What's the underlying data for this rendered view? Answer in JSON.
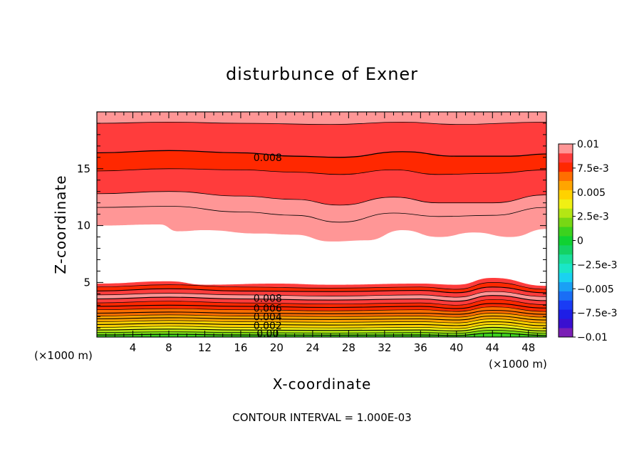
{
  "chart_data": {
    "type": "contour",
    "title": "disturbunce of Exner",
    "xlabel": "X-coordinate",
    "ylabel": "Z-coordinate",
    "x_unit": "(×1000 m)",
    "xlim": [
      0,
      50
    ],
    "ylim": [
      0.2,
      20
    ],
    "x_ticks": [
      4,
      8,
      12,
      16,
      20,
      24,
      28,
      32,
      36,
      40,
      44,
      48
    ],
    "y_ticks": [
      5,
      10,
      15
    ],
    "footer": "CONTOUR INTERVAL = 1.000E-03",
    "contour_interval": 0.001,
    "colorbar": {
      "tick_labels": [
        "0.01",
        "7.5e-3",
        "0.005",
        "2.5e-3",
        "0",
        "−2.5e-3",
        "−0.005",
        "−7.5e-3",
        "−0.01"
      ],
      "levels": [
        -0.01,
        -0.009,
        -0.008,
        -0.007,
        -0.006,
        -0.005,
        -0.004,
        -0.003,
        -0.002,
        -0.001,
        0,
        0.001,
        0.002,
        0.003,
        0.004,
        0.005,
        0.006,
        0.007,
        0.008,
        0.009,
        0.01
      ],
      "colors": [
        "#7a1fb5",
        "#3a0fd0",
        "#1e1ee6",
        "#1a3cf5",
        "#1a6ef5",
        "#1aa0f5",
        "#1ad2f0",
        "#1ae6c8",
        "#1ae09c",
        "#14d264",
        "#10d232",
        "#3cd21e",
        "#78d714",
        "#b4e614",
        "#f0f014",
        "#ffd200",
        "#ffa500",
        "#ff6e00",
        "#ff2800",
        "#ff3c3c",
        "#ff9696"
      ]
    },
    "contour_labels": [
      {
        "text": "0.008",
        "x": 19,
        "z": 16.0
      },
      {
        "text": "0.008",
        "x": 19,
        "z": 3.6
      },
      {
        "text": "0.006",
        "x": 19,
        "z": 2.75
      },
      {
        "text": "0.004",
        "x": 19,
        "z": 2.0
      },
      {
        "text": "0.002",
        "x": 19,
        "z": 1.2
      },
      {
        "text": "0.00",
        "x": 19,
        "z": 0.5
      }
    ],
    "field": {
      "upper_levels_zmax": [
        {
          "level": 0.01,
          "color_index": 20
        },
        {
          "level": 0.009,
          "color_index": 19
        },
        {
          "level": 0.008,
          "color_index": 18
        }
      ],
      "upper_contours": [
        {
          "level": 0.0085,
          "x": [
            0,
            8,
            16,
            26,
            34,
            40,
            50
          ],
          "z": [
            19.0,
            19.1,
            19.0,
            18.9,
            19.1,
            18.9,
            19.1
          ]
        },
        {
          "level": 0.008,
          "x": [
            0,
            8,
            16,
            22,
            27,
            34,
            40,
            46,
            50
          ],
          "z": [
            16.4,
            16.6,
            16.4,
            16.1,
            16.0,
            16.5,
            16.1,
            16.1,
            16.3
          ]
        },
        {
          "level": 0.0075,
          "x": [
            0,
            8,
            16,
            22,
            27,
            33,
            38,
            44,
            50
          ],
          "z": [
            14.8,
            15.0,
            14.9,
            14.7,
            14.5,
            14.9,
            14.5,
            14.6,
            14.9
          ]
        },
        {
          "level": 0.007,
          "x": [
            0,
            8,
            16,
            22,
            27,
            33,
            38,
            44,
            50
          ],
          "z": [
            12.8,
            13.0,
            12.6,
            12.3,
            11.8,
            12.5,
            12.0,
            12.0,
            12.7
          ]
        },
        {
          "level": 0.0065,
          "x": [
            0,
            8,
            16,
            22,
            27,
            33,
            38,
            44,
            50
          ],
          "z": [
            11.6,
            11.7,
            11.2,
            10.9,
            10.3,
            11.1,
            10.8,
            10.9,
            11.6
          ]
        },
        {
          "level": 0.006,
          "x": [
            0,
            7,
            9,
            12,
            18,
            22,
            26,
            30,
            34,
            38,
            42,
            46,
            50
          ],
          "z": [
            10.0,
            10.1,
            9.5,
            9.6,
            9.3,
            9.2,
            8.6,
            8.7,
            9.6,
            9.0,
            9.4,
            9.0,
            9.7
          ]
        }
      ],
      "lower_contours": [
        {
          "level": 0.006,
          "x": [
            0,
            8,
            12,
            20,
            26,
            36,
            40,
            44,
            50
          ],
          "z": [
            4.9,
            5.1,
            4.8,
            4.9,
            4.8,
            4.9,
            4.8,
            5.4,
            4.7
          ]
        },
        {
          "level": 0.0065,
          "x": [
            0,
            8,
            16,
            26,
            36,
            40,
            44,
            50
          ],
          "z": [
            4.6,
            4.8,
            4.6,
            4.5,
            4.6,
            4.4,
            5.0,
            4.4
          ]
        },
        {
          "level": 0.007,
          "x": [
            0,
            8,
            16,
            26,
            36,
            40,
            44,
            50
          ],
          "z": [
            4.25,
            4.45,
            4.25,
            4.2,
            4.3,
            4.1,
            4.6,
            4.1
          ]
        },
        {
          "level": 0.0075,
          "x": [
            0,
            8,
            16,
            26,
            36,
            40,
            44,
            50
          ],
          "z": [
            3.9,
            4.05,
            3.9,
            3.8,
            3.9,
            3.7,
            4.2,
            3.75
          ]
        },
        {
          "level": 0.008,
          "x": [
            0,
            8,
            16,
            26,
            36,
            40,
            44,
            50
          ],
          "z": [
            3.55,
            3.7,
            3.55,
            3.45,
            3.55,
            3.35,
            3.85,
            3.4
          ]
        },
        {
          "level": 0.0075,
          "x": [
            0,
            8,
            16,
            26,
            36,
            40,
            44,
            50
          ],
          "z": [
            3.2,
            3.35,
            3.2,
            3.1,
            3.2,
            3.0,
            3.5,
            3.05
          ]
        },
        {
          "level": 0.007,
          "x": [
            0,
            8,
            16,
            26,
            36,
            40,
            44,
            50
          ],
          "z": [
            2.9,
            3.0,
            2.9,
            2.8,
            2.9,
            2.7,
            3.15,
            2.75
          ]
        },
        {
          "level": 0.0065,
          "x": [
            0,
            8,
            16,
            26,
            36,
            40,
            44,
            50
          ],
          "z": [
            2.6,
            2.7,
            2.6,
            2.5,
            2.6,
            2.45,
            2.85,
            2.45
          ]
        },
        {
          "level": 0.006,
          "x": [
            0,
            8,
            16,
            26,
            36,
            40,
            44,
            50
          ],
          "z": [
            2.3,
            2.4,
            2.3,
            2.25,
            2.3,
            2.2,
            2.55,
            2.2
          ]
        },
        {
          "level": 0.0055,
          "x": [
            0,
            8,
            16,
            26,
            36,
            40,
            44,
            50
          ],
          "z": [
            2.05,
            2.15,
            2.05,
            2.0,
            2.05,
            1.95,
            2.3,
            1.95
          ]
        },
        {
          "level": 0.005,
          "x": [
            0,
            8,
            16,
            26,
            36,
            40,
            44,
            50
          ],
          "z": [
            1.8,
            1.9,
            1.8,
            1.75,
            1.8,
            1.7,
            2.05,
            1.7
          ]
        },
        {
          "level": 0.0045,
          "x": [
            0,
            8,
            16,
            26,
            36,
            40,
            44,
            50
          ],
          "z": [
            1.55,
            1.65,
            1.55,
            1.5,
            1.55,
            1.45,
            1.8,
            1.45
          ]
        },
        {
          "level": 0.004,
          "x": [
            0,
            8,
            16,
            26,
            36,
            40,
            44,
            50
          ],
          "z": [
            1.3,
            1.4,
            1.3,
            1.25,
            1.3,
            1.2,
            1.55,
            1.2
          ]
        },
        {
          "level": 0.0035,
          "x": [
            0,
            8,
            16,
            26,
            36,
            40,
            44,
            50
          ],
          "z": [
            1.05,
            1.15,
            1.05,
            1.0,
            1.05,
            0.95,
            1.3,
            0.95
          ]
        },
        {
          "level": 0.003,
          "x": [
            0,
            8,
            16,
            26,
            36,
            40,
            44,
            50
          ],
          "z": [
            0.82,
            0.9,
            0.82,
            0.78,
            0.82,
            0.74,
            1.05,
            0.74
          ]
        },
        {
          "level": 0.0025,
          "x": [
            0,
            8,
            16,
            26,
            36,
            40,
            44,
            50
          ],
          "z": [
            0.6,
            0.66,
            0.6,
            0.56,
            0.6,
            0.54,
            0.8,
            0.54
          ]
        },
        {
          "level": 0.002,
          "x": [
            0,
            8,
            16,
            26,
            36,
            40,
            44,
            50
          ],
          "z": [
            0.38,
            0.44,
            0.38,
            0.36,
            0.38,
            0.34,
            0.56,
            0.34
          ]
        }
      ],
      "lower_band_colors": [
        19,
        18,
        19,
        20,
        19,
        18,
        18,
        17,
        17,
        16,
        16,
        15,
        15,
        14,
        13,
        12,
        11,
        11
      ]
    }
  }
}
